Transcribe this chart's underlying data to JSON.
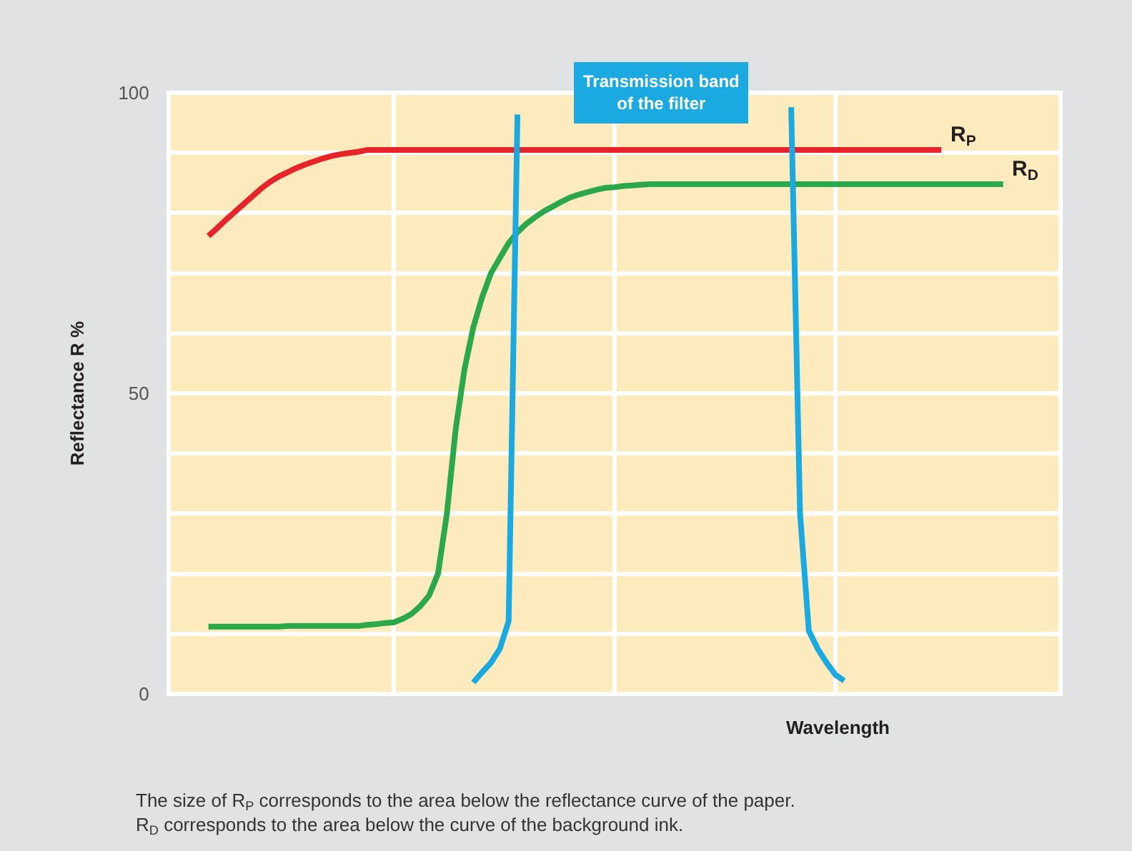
{
  "chart_data": {
    "type": "line",
    "ylabel": "Reflectance R %",
    "xlabel": "Wavelength",
    "categories": [
      null,
      null,
      null,
      null,
      null,
      null,
      null,
      null,
      null,
      null,
      null,
      null,
      null,
      null,
      null,
      null,
      null,
      null,
      null,
      null,
      null,
      null,
      null,
      null,
      null,
      null,
      null,
      null,
      null,
      null,
      null,
      null,
      null,
      null,
      null,
      null,
      null,
      null,
      null,
      null,
      null,
      null,
      null,
      null,
      null,
      null,
      null,
      null,
      null,
      null,
      null,
      null,
      null,
      null,
      null,
      null,
      null,
      null,
      null,
      null,
      null,
      null,
      null,
      null,
      null,
      null,
      null,
      null,
      null,
      null,
      null,
      null,
      null,
      null,
      null,
      null,
      null,
      null,
      null,
      null,
      null,
      null,
      null,
      null,
      null,
      null,
      null,
      null,
      null,
      null,
      null,
      null,
      null,
      null,
      null,
      null,
      null,
      null,
      null,
      null,
      null
    ],
    "ylim": [
      0,
      100
    ],
    "yticks": [
      0,
      {
        "value": 10,
        "label": null
      },
      {
        "value": 20,
        "label": null
      },
      {
        "value": 30,
        "label": null
      },
      {
        "value": 40,
        "label": null
      },
      50,
      {
        "value": 60,
        "label": null
      },
      {
        "value": 70,
        "label": null
      },
      {
        "value": 80,
        "label": null
      },
      {
        "value": 90,
        "label": null
      },
      100
    ],
    "grid": true,
    "legend": false,
    "tick_labels": "y",
    "series": [
      {
        "name": "R$_{P}$",
        "color": "#e8242b",
        "values": [
          null,
          null,
          null,
          null,
          76.2,
          77.5,
          78.9,
          80.2,
          81.5,
          82.8,
          84.1,
          85.2,
          86.1,
          86.8,
          87.5,
          88.1,
          88.6,
          89.1,
          89.5,
          89.8,
          90,
          90.2,
          90.5,
          90.5,
          90.5,
          90.5,
          90.5,
          90.5,
          90.5,
          90.5,
          90.5,
          90.5,
          90.5,
          90.5,
          90.5,
          90.5,
          90.5,
          90.5,
          90.5,
          90.5,
          90.5,
          90.5,
          90.5,
          90.5,
          90.5,
          90.5,
          90.5,
          90.5,
          90.5,
          90.5,
          90.5,
          90.5,
          90.5,
          90.5,
          90.5,
          90.5,
          90.5,
          90.5,
          90.5,
          90.5,
          90.5,
          90.5,
          90.5,
          90.5,
          90.5,
          90.5,
          90.5,
          90.5,
          90.5,
          90.5,
          90.5,
          90.5,
          90.5,
          90.5,
          90.5,
          90.5,
          90.5,
          90.5,
          90.5,
          90.5,
          90.5,
          90.5,
          90.5,
          90.5,
          90.5,
          90.5,
          90.5,
          90.5,
          null,
          null,
          null,
          null,
          null,
          null,
          null,
          null,
          null,
          null,
          null,
          null,
          null
        ]
      },
      {
        "name": "R$_{D}$",
        "color": "#2aa84a",
        "values": [
          null,
          null,
          null,
          null,
          11.2,
          11.2,
          11.2,
          11.2,
          11.2,
          11.2,
          11.2,
          11.2,
          11.2,
          11.3,
          11.3,
          11.3,
          11.3,
          11.3,
          11.3,
          11.3,
          11.3,
          11.3,
          11.5,
          11.6,
          11.8,
          11.9,
          12.5,
          13.3,
          14.6,
          16.4,
          20,
          29.9,
          44,
          54,
          61,
          66,
          70,
          72.5,
          75,
          76.8,
          78.2,
          79.3,
          80.3,
          81.1,
          81.9,
          82.6,
          83.1,
          83.5,
          83.9,
          84.2,
          84.3,
          84.5,
          84.6,
          84.7,
          84.8,
          84.8,
          84.8,
          84.8,
          84.8,
          84.8,
          84.8,
          84.8,
          84.8,
          84.8,
          84.8,
          84.8,
          84.8,
          84.8,
          84.8,
          84.8,
          84.8,
          84.8,
          84.8,
          84.8,
          84.8,
          84.8,
          84.8,
          84.8,
          84.8,
          84.8,
          84.8,
          84.8,
          84.8,
          84.8,
          84.8,
          84.8,
          84.8,
          84.8,
          84.8,
          84.8,
          84.8,
          84.8,
          84.8,
          84.8,
          84.8,
          null,
          null,
          null,
          null,
          null,
          null
        ]
      },
      {
        "color": "#1ba9e1",
        "values": [
          null,
          null,
          null,
          null,
          null,
          null,
          null,
          null,
          null,
          null,
          null,
          null,
          null,
          null,
          null,
          null,
          null,
          null,
          null,
          null,
          null,
          null,
          null,
          null,
          null,
          null,
          null,
          null,
          null,
          null,
          null,
          null,
          null,
          null,
          1.9,
          3.6,
          5.2,
          7.5,
          12.1,
          96.4,
          null,
          null,
          null,
          null,
          null,
          null,
          null,
          null,
          null,
          null,
          null,
          null,
          null,
          null,
          null,
          null,
          null,
          null,
          null,
          null,
          null,
          null,
          null,
          null,
          null,
          null,
          null,
          null,
          null,
          null,
          null,
          null,
          null,
          null,
          null,
          null,
          null,
          null,
          null,
          null,
          null,
          null,
          null,
          null,
          null,
          null,
          null,
          null,
          null,
          null,
          null,
          null,
          null,
          null,
          null,
          null,
          null,
          null,
          null,
          null,
          null
        ]
      },
      {
        "color": "#1ba9e1",
        "values": [
          null,
          null,
          null,
          null,
          null,
          null,
          null,
          null,
          null,
          null,
          null,
          null,
          null,
          null,
          null,
          null,
          null,
          null,
          null,
          null,
          null,
          null,
          null,
          null,
          null,
          null,
          null,
          null,
          null,
          null,
          null,
          null,
          null,
          null,
          null,
          null,
          null,
          null,
          null,
          null,
          null,
          null,
          null,
          null,
          null,
          null,
          null,
          null,
          null,
          null,
          null,
          null,
          null,
          null,
          null,
          null,
          null,
          null,
          null,
          null,
          null,
          null,
          null,
          null,
          null,
          null,
          null,
          null,
          null,
          null,
          97.6,
          30,
          10.5,
          7.5,
          5.2,
          3.2,
          2.2,
          null,
          null,
          null,
          null,
          null,
          null,
          null,
          null,
          null,
          null,
          null,
          null,
          null,
          null,
          null,
          null,
          null,
          null,
          null,
          null,
          null,
          null,
          null,
          null
        ]
      }
    ],
    "annotations": [
      "Transmission band\nof the filter",
      "The size of R$_{P}$ corresponds to the area below the reflectance curve of the paper.\nR$_{D}$ corresponds to the area below the curve of the background ink."
    ]
  }
}
